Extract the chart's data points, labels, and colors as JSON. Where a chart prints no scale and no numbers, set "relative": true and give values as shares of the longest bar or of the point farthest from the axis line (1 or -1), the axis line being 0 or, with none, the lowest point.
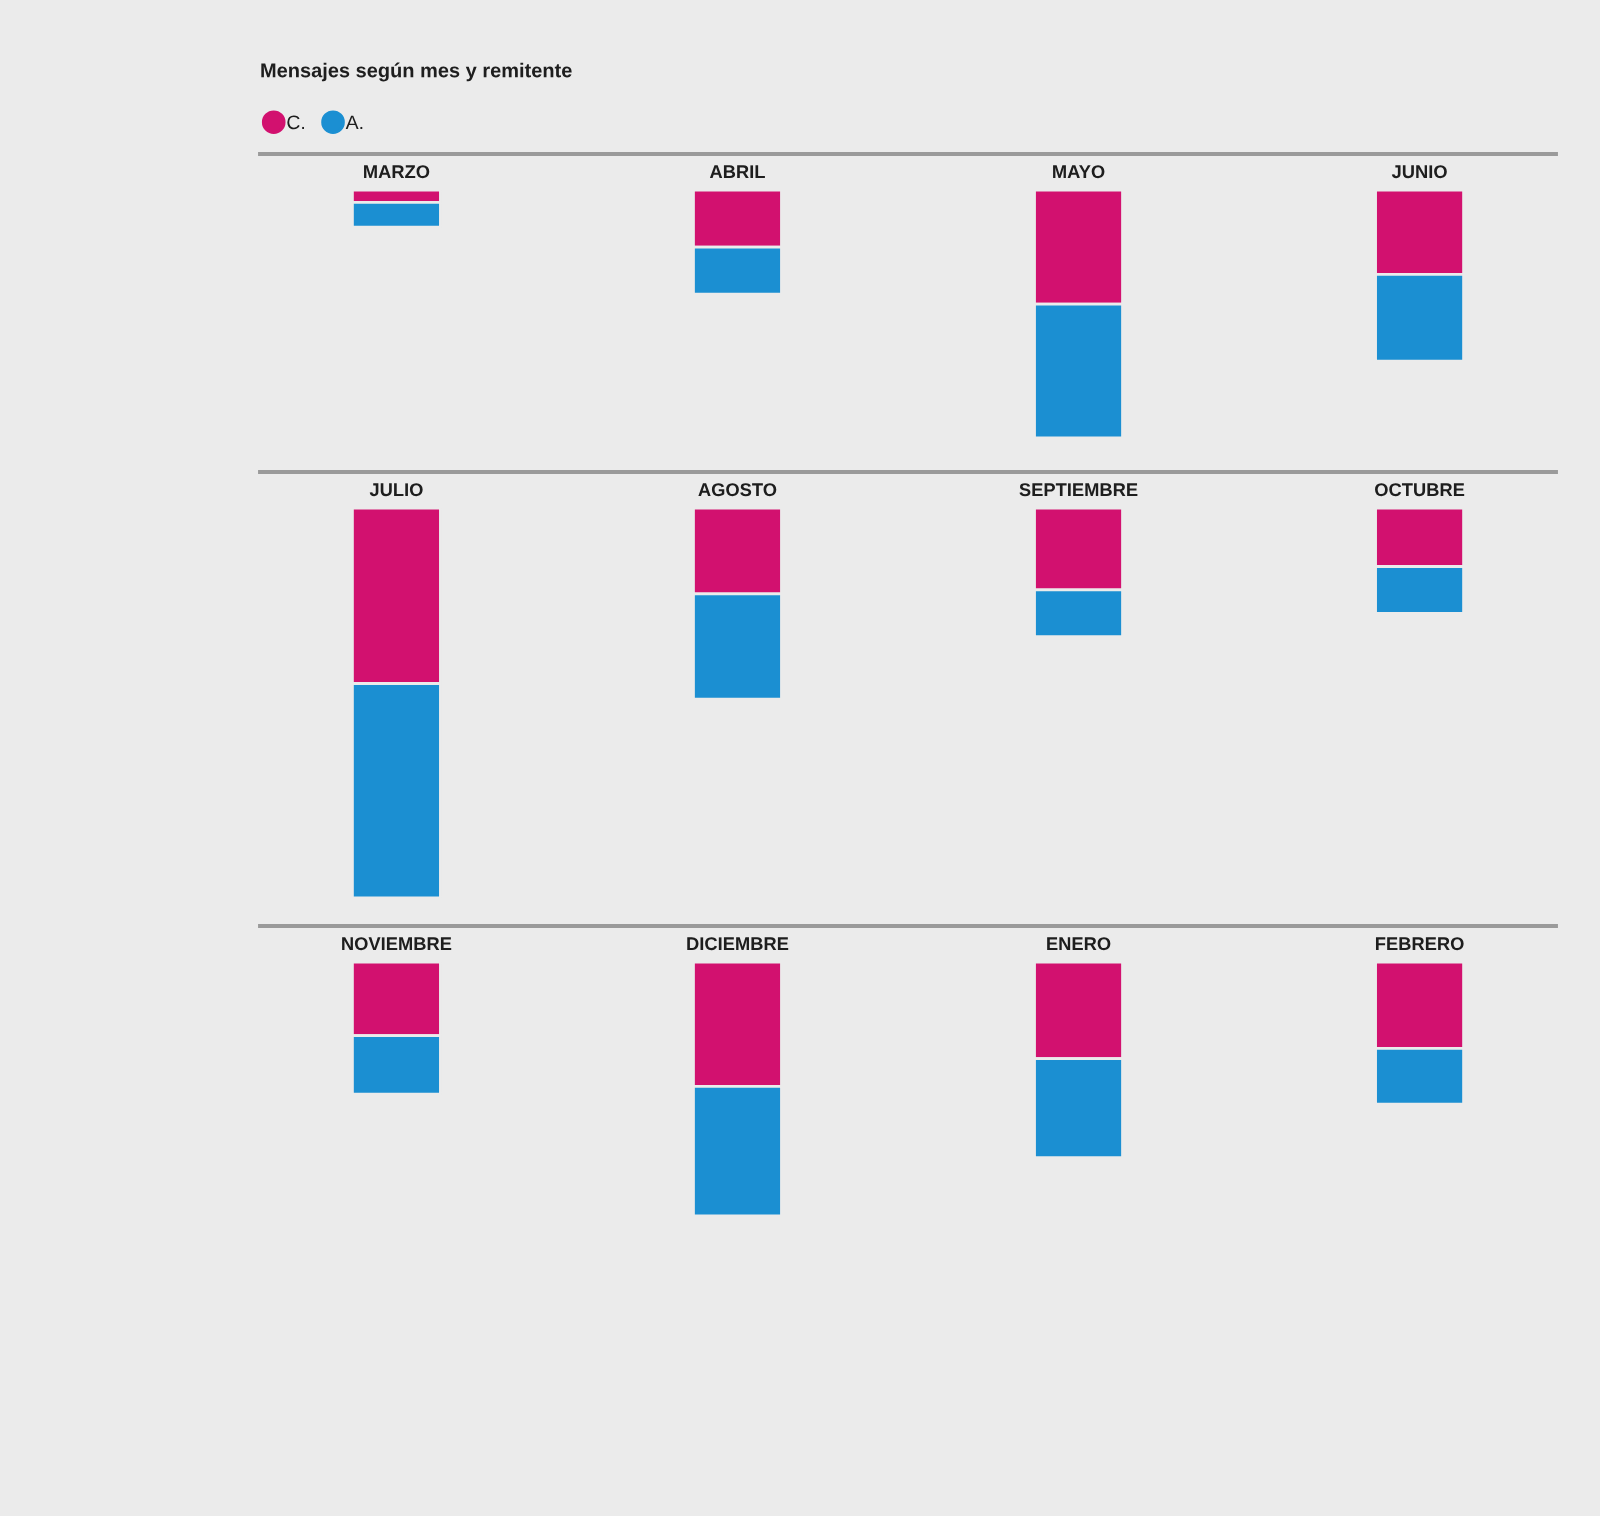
{
  "chart_data": [
    {
      "type": "bar",
      "title": "Mensajes según mes y remitente",
      "categories": [
        "MARZO",
        "ABRIL",
        "MAYO",
        "JUNIO"
      ],
      "series": [
        {
          "name": "C.",
          "color": "#d2116f",
          "values": [
            -0.05,
            -0.23,
            -0.46,
            -0.34
          ]
        },
        {
          "name": "A.",
          "color": "#1b8fd2",
          "values": [
            -0.1,
            -0.19,
            -0.54,
            -0.35
          ]
        }
      ],
      "stacked": true,
      "relative": true,
      "legend": "top left"
    },
    {
      "type": "bar",
      "categories": [
        "JULIO",
        "AGOSTO",
        "SEPTIEMBRE",
        "OCTUBRE"
      ],
      "series": [
        {
          "color": "#d2116f",
          "values": [
            -0.45,
            -0.22,
            -0.21,
            -0.15
          ]
        },
        {
          "color": "#1b8fd2",
          "values": [
            -0.55,
            -0.27,
            -0.12,
            -0.12
          ]
        }
      ],
      "stacked": true,
      "relative": true
    },
    {
      "type": "bar",
      "categories": [
        "NOVIEMBRE",
        "DICIEMBRE",
        "ENERO",
        "FEBRERO"
      ],
      "series": [
        {
          "color": "#d2116f",
          "values": [
            -0.29,
            -0.49,
            -0.38,
            -0.34
          ]
        },
        {
          "color": "#1b8fd2",
          "values": [
            -0.23,
            -0.51,
            -0.39,
            -0.22
          ]
        }
      ],
      "stacked": true,
      "relative": true
    }
  ]
}
